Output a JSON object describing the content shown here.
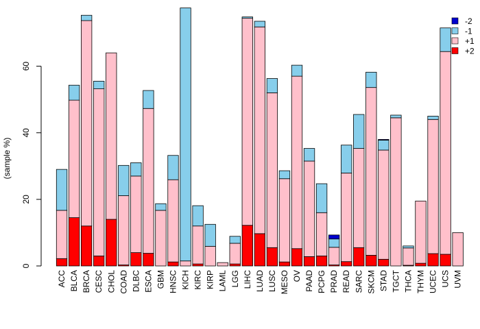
{
  "chart_data": {
    "type": "bar",
    "stacked": true,
    "title": "",
    "xlabel": "",
    "ylabel": "(sample %)",
    "ylim": [
      0,
      77
    ],
    "yticks": [
      0,
      20,
      40,
      60
    ],
    "grid": false,
    "legend_position": "top-right",
    "categories": [
      "ACC",
      "BLCA",
      "BRCA",
      "CESC",
      "CHOL",
      "COAD",
      "DLBC",
      "ESCA",
      "GBM",
      "HNSC",
      "KICH",
      "KIRC",
      "KIRP",
      "LAML",
      "LGG",
      "LIHC",
      "LUAD",
      "LUSC",
      "MESO",
      "OV",
      "PAAD",
      "PCPG",
      "PRAD",
      "READ",
      "SARC",
      "SKCM",
      "STAD",
      "TGCT",
      "THCA",
      "THYM",
      "UCEC",
      "UCS",
      "UVM"
    ],
    "series": [
      {
        "name": "+2",
        "color": "#ff0000",
        "values": [
          2.2,
          14.5,
          12.0,
          3.0,
          14.0,
          0.3,
          4.0,
          3.8,
          0,
          1.2,
          0,
          0.6,
          0,
          0,
          0.6,
          12.2,
          9.7,
          5.5,
          1.2,
          5.2,
          2.8,
          3.0,
          0.3,
          1.3,
          5.5,
          3.2,
          2.0,
          0,
          0.2,
          0.8,
          3.7,
          3.5,
          0
        ]
      },
      {
        "name": "+1",
        "color": "#ffc0cb",
        "values": [
          14.5,
          35.3,
          61.7,
          50.2,
          50.0,
          20.8,
          23.0,
          43.5,
          16.7,
          24.7,
          1.5,
          11.4,
          5.9,
          1.0,
          6.2,
          62.2,
          62.1,
          46.5,
          25.0,
          51.8,
          28.7,
          13.0,
          5.3,
          26.6,
          29.8,
          50.4,
          32.8,
          44.5,
          5.2,
          18.7,
          40.3,
          60.9,
          10.0
        ]
      },
      {
        "name": "-1",
        "color": "#87ceeb",
        "values": [
          12.3,
          4.5,
          1.6,
          2.3,
          0,
          9.1,
          4.0,
          5.4,
          2.0,
          7.3,
          76.0,
          6.1,
          6.6,
          0,
          2.1,
          0.4,
          1.7,
          4.3,
          2.4,
          3.3,
          3.8,
          8.7,
          2.5,
          8.4,
          10.2,
          4.6,
          3.0,
          0.8,
          0.6,
          0,
          1.0,
          7.1,
          0
        ]
      },
      {
        "name": "-2",
        "color": "#0000cd",
        "values": [
          0,
          0,
          0,
          0,
          0,
          0,
          0,
          0,
          0,
          0,
          0,
          0,
          0,
          0,
          0,
          0,
          0,
          0,
          0,
          0,
          0,
          0,
          1.2,
          0,
          0,
          0,
          0.2,
          0,
          0,
          0,
          0,
          0,
          0
        ]
      }
    ],
    "legend_order": [
      "-2",
      "-1",
      "+1",
      "+2"
    ]
  }
}
